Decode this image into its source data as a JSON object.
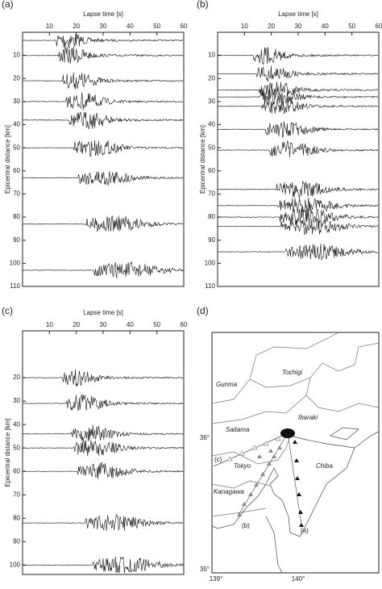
{
  "chart_data": [
    {
      "type": "seismogram",
      "panel": "(a)",
      "xlabel": "Lapse time [s]",
      "ylabel": "Epicentral distance [km]",
      "xlim": [
        0,
        60
      ],
      "xticks": [
        10,
        20,
        30,
        40,
        50,
        60
      ],
      "ylim": [
        0,
        110
      ],
      "yticks": [
        10,
        20,
        30,
        40,
        50,
        60,
        70,
        80,
        90,
        100,
        110
      ],
      "values": [
        3.5,
        10,
        21,
        30,
        38,
        50,
        63,
        83,
        103
      ]
    },
    {
      "type": "seismogram",
      "panel": "(b)",
      "xlabel": "Lapse time [s]",
      "ylabel": "Epicentral distance [km]",
      "xlim": [
        0,
        60
      ],
      "xticks": [
        10,
        20,
        30,
        40,
        50,
        60
      ],
      "ylim": [
        0,
        110
      ],
      "yticks": [
        10,
        20,
        30,
        40,
        50,
        60,
        70,
        80,
        90,
        100,
        110
      ],
      "values": [
        10,
        18,
        25,
        28,
        32,
        42,
        51,
        68,
        75,
        80,
        84,
        95
      ]
    },
    {
      "type": "seismogram",
      "panel": "(c)",
      "xlabel": "Lapse time [s]",
      "ylabel": "Epicentral distance [km]",
      "xlim": [
        0,
        60
      ],
      "xticks": [
        10,
        20,
        30,
        40,
        50,
        60
      ],
      "ylim": [
        0,
        104
      ],
      "yticks": [
        20,
        30,
        40,
        50,
        60,
        70,
        80,
        90,
        100
      ],
      "values": [
        20,
        31,
        44,
        50,
        60,
        82,
        100
      ]
    }
  ],
  "map": {
    "panel": "(d)",
    "places": [
      "Tochigi",
      "Gunma",
      "Ibaraki",
      "Saitama",
      "Tokyo",
      "Chiba",
      "Kanagawa"
    ],
    "line_labels": [
      "(a)",
      "(b)",
      "(c)"
    ],
    "lat_labels": [
      "36°",
      "35°"
    ],
    "lon_labels": [
      "139°",
      "140°"
    ]
  }
}
